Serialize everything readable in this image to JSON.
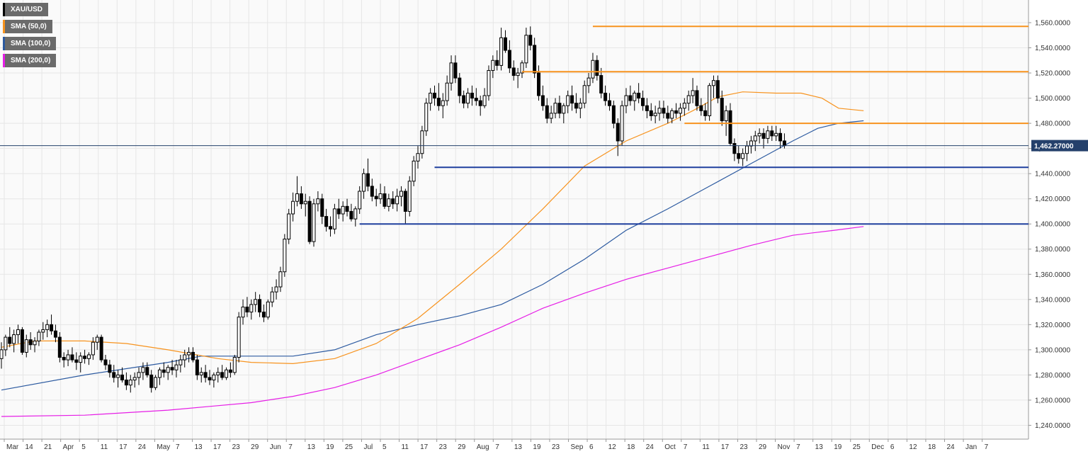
{
  "legend": [
    {
      "label": "XAU/USD",
      "color": "#000000"
    },
    {
      "label": "SMA (50,0)",
      "color": "#f7931e"
    },
    {
      "label": "SMA (100,0)",
      "color": "#2c5aa0"
    },
    {
      "label": "SMA (200,0)",
      "color": "#e61ee6"
    }
  ],
  "current_price_label": "1,462.27000",
  "chart_data": {
    "type": "candlestick",
    "symbol": "XAU/USD",
    "x_tick_labels": [
      "Mar",
      "14",
      "21",
      "Apr",
      "5",
      "11",
      "17",
      "24",
      "May",
      "7",
      "13",
      "17",
      "23",
      "29",
      "Jun",
      "7",
      "13",
      "19",
      "25",
      "Jul",
      "5",
      "11",
      "17",
      "23",
      "29",
      "Aug",
      "7",
      "13",
      "19",
      "23",
      "Sep",
      "6",
      "12",
      "18",
      "24",
      "Oct",
      "7",
      "11",
      "17",
      "23",
      "29",
      "Nov",
      "7",
      "13",
      "19",
      "25",
      "Dec",
      "6",
      "12",
      "18",
      "24",
      "Jan",
      "7"
    ],
    "y_tick_labels": [
      "1,240.0000",
      "1,260.0000",
      "1,280.0000",
      "1,300.0000",
      "1,320.0000",
      "1,340.0000",
      "1,360.0000",
      "1,380.0000",
      "1,400.0000",
      "1,420.0000",
      "1,440.0000",
      "1,460.0000",
      "1,480.0000",
      "1,500.0000",
      "1,520.0000",
      "1,540.0000",
      "1,560.0000"
    ],
    "y_ticks": [
      1240,
      1260,
      1280,
      1300,
      1320,
      1340,
      1360,
      1380,
      1400,
      1420,
      1440,
      1460,
      1480,
      1500,
      1520,
      1540,
      1560
    ],
    "ylim": [
      1229,
      1578
    ],
    "current_price": 1462.27,
    "resistance_levels": [
      1557,
      1521,
      1480
    ],
    "support_levels": [
      1445,
      1400
    ],
    "sma50": [
      [
        0,
        1302
      ],
      [
        8,
        1307
      ],
      [
        20,
        1307
      ],
      [
        30,
        1305
      ],
      [
        40,
        1300
      ],
      [
        52,
        1293
      ],
      [
        60,
        1290
      ],
      [
        70,
        1289
      ],
      [
        80,
        1293
      ],
      [
        90,
        1305
      ],
      [
        100,
        1325
      ],
      [
        110,
        1352
      ],
      [
        120,
        1380
      ],
      [
        130,
        1412
      ],
      [
        140,
        1446
      ],
      [
        150,
        1466
      ],
      [
        160,
        1480
      ],
      [
        166,
        1490
      ],
      [
        172,
        1501
      ],
      [
        178,
        1505
      ],
      [
        186,
        1504
      ],
      [
        192,
        1504
      ],
      [
        197,
        1500
      ],
      [
        201,
        1492
      ],
      [
        207,
        1490
      ]
    ],
    "sma100": [
      [
        0,
        1268
      ],
      [
        20,
        1280
      ],
      [
        40,
        1290
      ],
      [
        48,
        1295
      ],
      [
        60,
        1295
      ],
      [
        70,
        1295
      ],
      [
        80,
        1300
      ],
      [
        90,
        1312
      ],
      [
        100,
        1320
      ],
      [
        110,
        1327
      ],
      [
        120,
        1336
      ],
      [
        130,
        1352
      ],
      [
        140,
        1372
      ],
      [
        150,
        1395
      ],
      [
        160,
        1412
      ],
      [
        170,
        1430
      ],
      [
        180,
        1448
      ],
      [
        190,
        1466
      ],
      [
        196,
        1476
      ],
      [
        201,
        1480
      ],
      [
        207,
        1482
      ]
    ],
    "sma200": [
      [
        0,
        1247
      ],
      [
        20,
        1248
      ],
      [
        40,
        1252
      ],
      [
        50,
        1255
      ],
      [
        60,
        1258
      ],
      [
        70,
        1263
      ],
      [
        80,
        1270
      ],
      [
        90,
        1280
      ],
      [
        100,
        1292
      ],
      [
        110,
        1304
      ],
      [
        120,
        1318
      ],
      [
        130,
        1333
      ],
      [
        140,
        1345
      ],
      [
        150,
        1356
      ],
      [
        160,
        1365
      ],
      [
        170,
        1374
      ],
      [
        180,
        1383
      ],
      [
        190,
        1391
      ],
      [
        200,
        1395
      ],
      [
        207,
        1398
      ]
    ],
    "candles": [
      [
        1293,
        1306,
        1285,
        1300
      ],
      [
        1300,
        1312,
        1295,
        1310
      ],
      [
        1310,
        1318,
        1302,
        1305
      ],
      [
        1305,
        1316,
        1298,
        1312
      ],
      [
        1312,
        1320,
        1305,
        1316
      ],
      [
        1316,
        1318,
        1296,
        1298
      ],
      [
        1298,
        1312,
        1294,
        1308
      ],
      [
        1308,
        1314,
        1300,
        1304
      ],
      [
        1304,
        1310,
        1298,
        1307
      ],
      [
        1307,
        1316,
        1303,
        1314
      ],
      [
        1314,
        1322,
        1308,
        1316
      ],
      [
        1316,
        1324,
        1310,
        1320
      ],
      [
        1320,
        1328,
        1312,
        1315
      ],
      [
        1315,
        1320,
        1306,
        1310
      ],
      [
        1310,
        1314,
        1290,
        1294
      ],
      [
        1294,
        1298,
        1286,
        1292
      ],
      [
        1292,
        1300,
        1287,
        1296
      ],
      [
        1296,
        1302,
        1290,
        1292
      ],
      [
        1292,
        1298,
        1284,
        1290
      ],
      [
        1290,
        1298,
        1282,
        1295
      ],
      [
        1295,
        1300,
        1289,
        1293
      ],
      [
        1293,
        1298,
        1288,
        1296
      ],
      [
        1296,
        1310,
        1292,
        1306
      ],
      [
        1306,
        1312,
        1300,
        1310
      ],
      [
        1310,
        1312,
        1290,
        1292
      ],
      [
        1292,
        1296,
        1284,
        1288
      ],
      [
        1288,
        1292,
        1278,
        1282
      ],
      [
        1282,
        1288,
        1274,
        1278
      ],
      [
        1278,
        1284,
        1270,
        1280
      ],
      [
        1280,
        1286,
        1274,
        1276
      ],
      [
        1276,
        1282,
        1268,
        1272
      ],
      [
        1272,
        1280,
        1266,
        1276
      ],
      [
        1276,
        1282,
        1270,
        1278
      ],
      [
        1278,
        1286,
        1272,
        1282
      ],
      [
        1282,
        1290,
        1276,
        1286
      ],
      [
        1286,
        1290,
        1278,
        1280
      ],
      [
        1280,
        1284,
        1266,
        1270
      ],
      [
        1270,
        1280,
        1268,
        1278
      ],
      [
        1278,
        1286,
        1272,
        1284
      ],
      [
        1284,
        1290,
        1278,
        1282
      ],
      [
        1282,
        1288,
        1276,
        1286
      ],
      [
        1286,
        1292,
        1280,
        1284
      ],
      [
        1284,
        1292,
        1278,
        1288
      ],
      [
        1288,
        1296,
        1282,
        1292
      ],
      [
        1292,
        1300,
        1286,
        1296
      ],
      [
        1296,
        1302,
        1290,
        1298
      ],
      [
        1298,
        1302,
        1290,
        1292
      ],
      [
        1292,
        1296,
        1276,
        1280
      ],
      [
        1280,
        1286,
        1274,
        1282
      ],
      [
        1282,
        1288,
        1274,
        1278
      ],
      [
        1278,
        1284,
        1272,
        1276
      ],
      [
        1276,
        1282,
        1270,
        1280
      ],
      [
        1280,
        1286,
        1274,
        1282
      ],
      [
        1282,
        1288,
        1276,
        1278
      ],
      [
        1278,
        1286,
        1276,
        1284
      ],
      [
        1284,
        1290,
        1278,
        1282
      ],
      [
        1282,
        1296,
        1280,
        1294
      ],
      [
        1294,
        1330,
        1290,
        1326
      ],
      [
        1326,
        1340,
        1320,
        1334
      ],
      [
        1334,
        1342,
        1326,
        1330
      ],
      [
        1330,
        1340,
        1324,
        1336
      ],
      [
        1336,
        1346,
        1330,
        1340
      ],
      [
        1340,
        1344,
        1326,
        1330
      ],
      [
        1330,
        1336,
        1322,
        1326
      ],
      [
        1326,
        1340,
        1324,
        1338
      ],
      [
        1338,
        1350,
        1334,
        1346
      ],
      [
        1346,
        1356,
        1340,
        1350
      ],
      [
        1350,
        1366,
        1346,
        1362
      ],
      [
        1362,
        1392,
        1358,
        1388
      ],
      [
        1388,
        1412,
        1384,
        1408
      ],
      [
        1408,
        1425,
        1402,
        1418
      ],
      [
        1418,
        1438,
        1414,
        1424
      ],
      [
        1424,
        1430,
        1412,
        1416
      ],
      [
        1416,
        1424,
        1406,
        1418
      ],
      [
        1418,
        1422,
        1384,
        1386
      ],
      [
        1386,
        1420,
        1382,
        1416
      ],
      [
        1416,
        1426,
        1410,
        1420
      ],
      [
        1420,
        1424,
        1400,
        1406
      ],
      [
        1406,
        1412,
        1394,
        1398
      ],
      [
        1398,
        1406,
        1390,
        1396
      ],
      [
        1396,
        1416,
        1392,
        1412
      ],
      [
        1412,
        1420,
        1404,
        1408
      ],
      [
        1408,
        1418,
        1402,
        1414
      ],
      [
        1414,
        1420,
        1406,
        1410
      ],
      [
        1410,
        1416,
        1402,
        1404
      ],
      [
        1404,
        1414,
        1398,
        1412
      ],
      [
        1412,
        1430,
        1408,
        1426
      ],
      [
        1426,
        1444,
        1420,
        1440
      ],
      [
        1440,
        1452,
        1426,
        1430
      ],
      [
        1430,
        1436,
        1418,
        1422
      ],
      [
        1422,
        1428,
        1414,
        1420
      ],
      [
        1420,
        1432,
        1416,
        1424
      ],
      [
        1424,
        1430,
        1412,
        1414
      ],
      [
        1414,
        1424,
        1410,
        1420
      ],
      [
        1420,
        1426,
        1412,
        1416
      ],
      [
        1416,
        1428,
        1410,
        1422
      ],
      [
        1422,
        1430,
        1414,
        1426
      ],
      [
        1426,
        1428,
        1400,
        1410
      ],
      [
        1410,
        1438,
        1406,
        1434
      ],
      [
        1434,
        1454,
        1430,
        1450
      ],
      [
        1450,
        1462,
        1444,
        1456
      ],
      [
        1456,
        1478,
        1452,
        1474
      ],
      [
        1474,
        1500,
        1470,
        1496
      ],
      [
        1496,
        1508,
        1490,
        1504
      ],
      [
        1504,
        1510,
        1494,
        1500
      ],
      [
        1500,
        1512,
        1490,
        1494
      ],
      [
        1494,
        1504,
        1484,
        1498
      ],
      [
        1498,
        1518,
        1494,
        1512
      ],
      [
        1512,
        1534,
        1506,
        1528
      ],
      [
        1528,
        1534,
        1512,
        1516
      ],
      [
        1516,
        1520,
        1496,
        1502
      ],
      [
        1502,
        1506,
        1492,
        1496
      ],
      [
        1496,
        1508,
        1492,
        1504
      ],
      [
        1504,
        1510,
        1494,
        1500
      ],
      [
        1500,
        1508,
        1494,
        1498
      ],
      [
        1498,
        1502,
        1486,
        1494
      ],
      [
        1494,
        1508,
        1492,
        1502
      ],
      [
        1502,
        1526,
        1498,
        1522
      ],
      [
        1522,
        1534,
        1516,
        1530
      ],
      [
        1530,
        1538,
        1522,
        1526
      ],
      [
        1526,
        1556,
        1522,
        1548
      ],
      [
        1548,
        1554,
        1536,
        1538
      ],
      [
        1538,
        1546,
        1520,
        1524
      ],
      [
        1524,
        1530,
        1514,
        1518
      ],
      [
        1518,
        1524,
        1508,
        1520
      ],
      [
        1520,
        1530,
        1516,
        1528
      ],
      [
        1528,
        1556,
        1524,
        1550
      ],
      [
        1550,
        1557,
        1538,
        1542
      ],
      [
        1542,
        1548,
        1516,
        1520
      ],
      [
        1520,
        1526,
        1498,
        1502
      ],
      [
        1502,
        1510,
        1490,
        1494
      ],
      [
        1494,
        1500,
        1480,
        1484
      ],
      [
        1484,
        1494,
        1480,
        1488
      ],
      [
        1488,
        1500,
        1484,
        1496
      ],
      [
        1496,
        1502,
        1484,
        1488
      ],
      [
        1488,
        1496,
        1480,
        1494
      ],
      [
        1494,
        1506,
        1488,
        1502
      ],
      [
        1502,
        1510,
        1490,
        1496
      ],
      [
        1496,
        1504,
        1488,
        1492
      ],
      [
        1492,
        1500,
        1484,
        1496
      ],
      [
        1496,
        1514,
        1492,
        1510
      ],
      [
        1510,
        1520,
        1504,
        1516
      ],
      [
        1516,
        1536,
        1512,
        1530
      ],
      [
        1530,
        1534,
        1514,
        1518
      ],
      [
        1518,
        1524,
        1500,
        1504
      ],
      [
        1504,
        1510,
        1494,
        1498
      ],
      [
        1498,
        1504,
        1490,
        1494
      ],
      [
        1494,
        1498,
        1476,
        1480
      ],
      [
        1480,
        1484,
        1454,
        1466
      ],
      [
        1466,
        1498,
        1462,
        1494
      ],
      [
        1494,
        1508,
        1488,
        1502
      ],
      [
        1502,
        1510,
        1494,
        1498
      ],
      [
        1498,
        1506,
        1490,
        1504
      ],
      [
        1504,
        1512,
        1496,
        1500
      ],
      [
        1500,
        1506,
        1490,
        1494
      ],
      [
        1494,
        1500,
        1484,
        1490
      ],
      [
        1490,
        1496,
        1482,
        1486
      ],
      [
        1486,
        1494,
        1480,
        1488
      ],
      [
        1488,
        1498,
        1482,
        1492
      ],
      [
        1492,
        1498,
        1484,
        1488
      ],
      [
        1488,
        1494,
        1480,
        1484
      ],
      [
        1484,
        1492,
        1480,
        1490
      ],
      [
        1490,
        1496,
        1484,
        1488
      ],
      [
        1488,
        1496,
        1482,
        1492
      ],
      [
        1492,
        1500,
        1486,
        1496
      ],
      [
        1496,
        1506,
        1490,
        1502
      ],
      [
        1502,
        1516,
        1496,
        1506
      ],
      [
        1506,
        1510,
        1490,
        1494
      ],
      [
        1494,
        1500,
        1486,
        1490
      ],
      [
        1490,
        1496,
        1482,
        1486
      ],
      [
        1486,
        1512,
        1482,
        1510
      ],
      [
        1510,
        1518,
        1500,
        1514
      ],
      [
        1514,
        1518,
        1496,
        1500
      ],
      [
        1500,
        1506,
        1478,
        1482
      ],
      [
        1482,
        1494,
        1470,
        1490
      ],
      [
        1490,
        1496,
        1462,
        1464
      ],
      [
        1464,
        1468,
        1450,
        1456
      ],
      [
        1456,
        1462,
        1448,
        1452
      ],
      [
        1452,
        1460,
        1446,
        1456
      ],
      [
        1456,
        1466,
        1450,
        1462
      ],
      [
        1462,
        1470,
        1456,
        1466
      ],
      [
        1466,
        1474,
        1458,
        1470
      ],
      [
        1470,
        1476,
        1464,
        1472
      ],
      [
        1472,
        1476,
        1460,
        1468
      ],
      [
        1468,
        1478,
        1464,
        1474
      ],
      [
        1474,
        1478,
        1466,
        1470
      ],
      [
        1470,
        1478,
        1466,
        1472
      ],
      [
        1472,
        1476,
        1460,
        1466
      ],
      [
        1466,
        1472,
        1460,
        1462.27
      ]
    ]
  }
}
